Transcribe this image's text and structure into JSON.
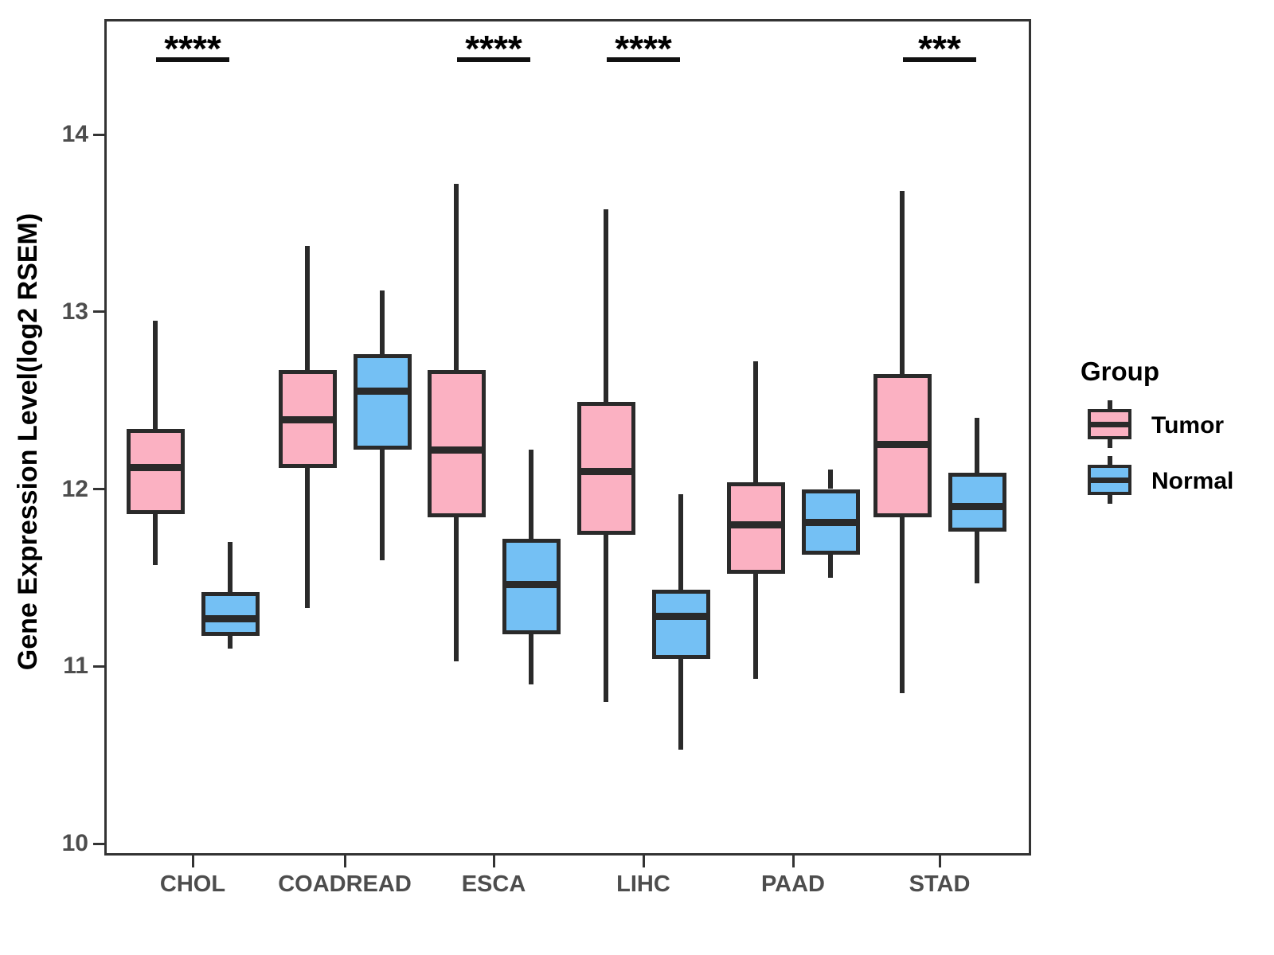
{
  "chart_data": {
    "type": "boxplot",
    "title": "",
    "xlabel": "",
    "ylabel": "Gene Expression Level(log2 RSEM)",
    "categories": [
      "CHOL",
      "COADREAD",
      "ESCA",
      "LIHC",
      "PAAD",
      "STAD"
    ],
    "yticks": [
      14,
      13,
      12,
      11,
      10
    ],
    "ylim": [
      9.95,
      14.65
    ],
    "grid": "off",
    "legend": {
      "title": "Group",
      "position": "right"
    },
    "series": [
      {
        "name": "Tumor",
        "fill": "#FBB1C2",
        "stroke": "#2a2a2a",
        "boxes": [
          {
            "category": "CHOL",
            "min": 11.57,
            "q1": 11.86,
            "median": 12.12,
            "q3": 12.34,
            "max": 12.95
          },
          {
            "category": "COADREAD",
            "min": 11.33,
            "q1": 12.12,
            "median": 12.39,
            "q3": 12.67,
            "max": 13.37
          },
          {
            "category": "ESCA",
            "min": 11.03,
            "q1": 11.84,
            "median": 12.22,
            "q3": 12.67,
            "max": 13.72
          },
          {
            "category": "LIHC",
            "min": 10.8,
            "q1": 11.74,
            "median": 12.1,
            "q3": 12.49,
            "max": 13.58
          },
          {
            "category": "PAAD",
            "min": 10.93,
            "q1": 11.52,
            "median": 11.8,
            "q3": 12.04,
            "max": 12.72
          },
          {
            "category": "STAD",
            "min": 10.85,
            "q1": 11.84,
            "median": 12.25,
            "q3": 12.65,
            "max": 13.68
          }
        ]
      },
      {
        "name": "Normal",
        "fill": "#74C0F4",
        "stroke": "#2a2a2a",
        "boxes": [
          {
            "category": "CHOL",
            "min": 11.1,
            "q1": 11.17,
            "median": 11.27,
            "q3": 11.42,
            "max": 11.7
          },
          {
            "category": "COADREAD",
            "min": 11.6,
            "q1": 12.22,
            "median": 12.55,
            "q3": 12.76,
            "max": 13.12
          },
          {
            "category": "ESCA",
            "min": 10.9,
            "q1": 11.18,
            "median": 11.46,
            "q3": 11.72,
            "max": 12.22
          },
          {
            "category": "LIHC",
            "min": 10.53,
            "q1": 11.04,
            "median": 11.28,
            "q3": 11.43,
            "max": 11.97
          },
          {
            "category": "PAAD",
            "min": 11.5,
            "q1": 11.63,
            "median": 11.81,
            "q3": 12.0,
            "max": 12.11
          },
          {
            "category": "STAD",
            "min": 11.47,
            "q1": 11.76,
            "median": 11.9,
            "q3": 12.09,
            "max": 12.4
          }
        ]
      }
    ],
    "significance": [
      {
        "category": "CHOL",
        "label": "****"
      },
      {
        "category": "ESCA",
        "label": "****"
      },
      {
        "category": "LIHC",
        "label": "****"
      },
      {
        "category": "STAD",
        "label": "***"
      }
    ]
  }
}
